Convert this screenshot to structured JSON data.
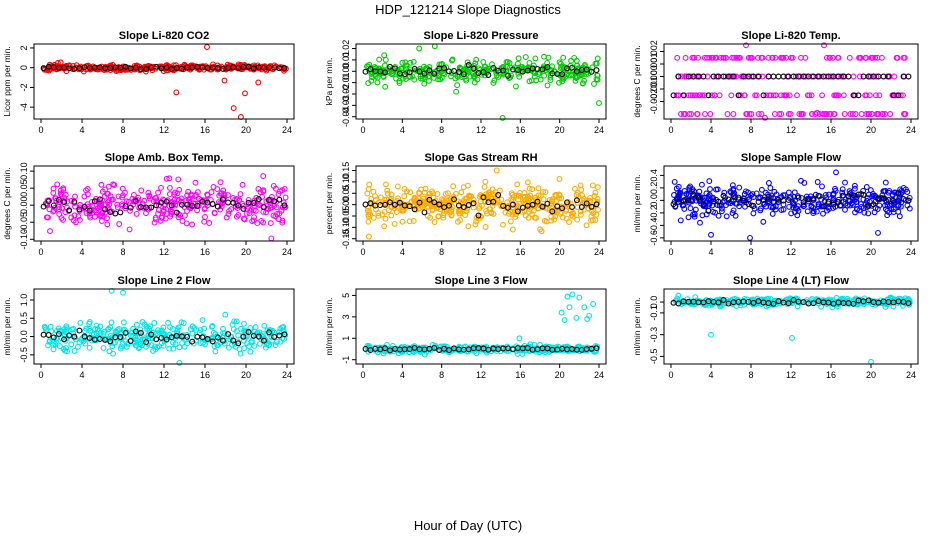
{
  "figure": {
    "title": "HDP_121214  Slope Diagnostics",
    "xlabel": "Hour of Day (UTC)"
  },
  "chart_data": [
    {
      "type": "scatter",
      "title": "Slope Li-820 CO2",
      "ylabel": "Licor ppm per min.",
      "color": "#ff0000",
      "xlim": [
        0,
        24
      ],
      "ylim": [
        -5.2,
        2.4
      ],
      "xticks": [
        0,
        4,
        8,
        12,
        16,
        20,
        24
      ],
      "yticks": [
        -4,
        -2,
        0,
        2
      ],
      "ytick_labels": [
        "-4",
        "-2",
        "0",
        "2"
      ],
      "spread": 0.28,
      "outliers": [
        [
          16.2,
          2.1
        ],
        [
          19.5,
          -5.0
        ],
        [
          18.8,
          -4.1
        ],
        [
          13.2,
          -2.5
        ],
        [
          19.9,
          -2.6
        ],
        [
          21.2,
          -1.5
        ],
        [
          17.9,
          -1.3
        ]
      ],
      "seed": 11,
      "n_colored": 320,
      "n_black": 48
    },
    {
      "type": "scatter",
      "title": "Slope Li-820 Pressure",
      "ylabel": "kPa per min.",
      "color": "#00cc00",
      "xlim": [
        0,
        24
      ],
      "ylim": [
        -0.042,
        0.024
      ],
      "xticks": [
        0,
        4,
        8,
        12,
        16,
        20,
        24
      ],
      "yticks": [
        -0.04,
        -0.03,
        -0.02,
        -0.01,
        0.0,
        0.01,
        0.02
      ],
      "ytick_labels": [
        "-0.04",
        "-0.03",
        "-0.02",
        "-0.01",
        "0.00",
        "0.01",
        "0.02"
      ],
      "spread": 0.009,
      "outliers": [
        [
          14.2,
          -0.041
        ],
        [
          24.0,
          -0.028
        ],
        [
          5.7,
          0.02
        ],
        [
          7.3,
          0.022
        ]
      ],
      "seed": 23,
      "n_colored": 330,
      "n_black": 48
    },
    {
      "type": "scatter",
      "title": "Slope Li-820 Temp.",
      "ylabel": "degrees C per min.",
      "color": "#ff00ff",
      "xlim": [
        0,
        24
      ],
      "ylim": [
        -0.0034,
        0.0026
      ],
      "xticks": [
        0,
        4,
        8,
        12,
        16,
        20,
        24
      ],
      "yticks": [
        -0.002,
        -0.001,
        0.0,
        0.001,
        0.002
      ],
      "ytick_labels": [
        "-0.002",
        "-0.001",
        "0.000",
        "0.001",
        "0.002"
      ],
      "spread": 0.0,
      "quantized": [
        -0.003,
        -0.0015,
        0.0,
        0.0015
      ],
      "black_levels": [
        0.0
      ],
      "outliers": [
        [
          7.5,
          0.0025
        ],
        [
          15.3,
          0.0025
        ],
        [
          9.4,
          -0.0033
        ],
        [
          14.6,
          -0.0029
        ]
      ],
      "seed": 37,
      "n_colored": 260,
      "n_black": 120
    },
    {
      "type": "scatter",
      "title": "Slope Amb. Box Temp.",
      "ylabel": "degrees C per min.",
      "color": "#ff00ff",
      "xlim": [
        0,
        24
      ],
      "ylim": [
        -0.105,
        0.115
      ],
      "xticks": [
        0,
        4,
        8,
        12,
        16,
        20,
        24
      ],
      "yticks": [
        -0.1,
        -0.05,
        0.0,
        0.05,
        0.1
      ],
      "ytick_labels": [
        "-0.10",
        "-0.05",
        "0.00",
        "0.05",
        "0.10"
      ],
      "spread": 0.055,
      "outliers": [],
      "seed": 41,
      "n_colored": 360,
      "n_black": 48
    },
    {
      "type": "scatter",
      "title": "Slope Gas Stream RH",
      "ylabel": "percent per min.",
      "color": "#ffaa00",
      "xlim": [
        0,
        24
      ],
      "ylim": [
        -0.16,
        0.17
      ],
      "xticks": [
        0,
        4,
        8,
        12,
        16,
        20,
        24
      ],
      "yticks": [
        -0.15,
        -0.1,
        -0.05,
        0.0,
        0.05,
        0.1,
        0.15
      ],
      "ytick_labels": [
        "-0.15",
        "-0.10",
        "-0.05",
        "0.00",
        "0.05",
        "0.10",
        "0.15"
      ],
      "spread": 0.075,
      "outliers": [
        [
          0.6,
          -0.14
        ],
        [
          13.6,
          0.15
        ]
      ],
      "seed": 53,
      "n_colored": 420,
      "n_black": 48
    },
    {
      "type": "scatter",
      "title": "Slope Sample Flow",
      "ylabel": "ml/min per min.",
      "color": "#0000ff",
      "xlim": [
        0,
        24
      ],
      "ylim": [
        -0.65,
        0.55
      ],
      "xticks": [
        0,
        4,
        8,
        12,
        16,
        20,
        24
      ],
      "yticks": [
        -0.6,
        -0.4,
        -0.2,
        0.0,
        0.2,
        0.4
      ],
      "ytick_labels": [
        "-0.6",
        "-0.4",
        "-0.2",
        "0.0",
        "0.2",
        "0.4"
      ],
      "spread": 0.2,
      "outliers": [
        [
          7.9,
          -0.6
        ],
        [
          16.5,
          0.45
        ],
        [
          4.0,
          -0.55
        ],
        [
          20.7,
          -0.52
        ]
      ],
      "seed": 67,
      "n_colored": 380,
      "n_black": 48
    },
    {
      "type": "scatter",
      "title": "Slope Line 2 Flow",
      "ylabel": "ml/min per min.",
      "color": "#00e5e5",
      "xlim": [
        0,
        24
      ],
      "ylim": [
        -0.75,
        1.3
      ],
      "xticks": [
        0,
        4,
        8,
        12,
        16,
        20,
        24
      ],
      "yticks": [
        -0.5,
        0.0,
        0.5,
        1.0
      ],
      "ytick_labels": [
        "-0.5",
        "0.0",
        "0.5",
        "1.0"
      ],
      "spread": 0.35,
      "outliers": [
        [
          6.9,
          1.25
        ],
        [
          8.0,
          1.2
        ],
        [
          13.5,
          -0.72
        ]
      ],
      "seed": 79,
      "n_colored": 330,
      "n_black": 48
    },
    {
      "type": "scatter",
      "title": "Slope Line 3 Flow",
      "ylabel": "ml/min per min.",
      "color": "#00e5e5",
      "xlim": [
        0,
        24
      ],
      "ylim": [
        -1.4,
        5.6
      ],
      "xticks": [
        0,
        4,
        8,
        12,
        16,
        20,
        24
      ],
      "yticks": [
        -1,
        1,
        3,
        5
      ],
      "ytick_labels": [
        "-1",
        "1",
        "3",
        "5"
      ],
      "spread": 0.28,
      "outliers": [
        [
          20.2,
          3.4
        ],
        [
          20.8,
          4.9
        ],
        [
          21.3,
          5.1
        ],
        [
          22.0,
          4.8
        ],
        [
          22.5,
          3.9
        ],
        [
          23.0,
          3.1
        ],
        [
          21.7,
          2.9
        ],
        [
          20.5,
          2.7
        ],
        [
          23.4,
          4.2
        ],
        [
          21.0,
          3.9
        ],
        [
          22.8,
          2.8
        ],
        [
          15.9,
          1.0
        ]
      ],
      "seed": 83,
      "n_colored": 320,
      "n_black": 48
    },
    {
      "type": "scatter",
      "title": "Slope Line 4 (LT) Flow",
      "ylabel": "ml/min per min.",
      "color": "#00e5e5",
      "xlim": [
        0,
        24
      ],
      "ylim": [
        -0.57,
        0.12
      ],
      "xticks": [
        0,
        4,
        8,
        12,
        16,
        20,
        24
      ],
      "yticks": [
        -0.5,
        -0.3,
        -0.1,
        0.0
      ],
      "ytick_labels": [
        "-0.5",
        "-0.3",
        "-0.1",
        "0.0"
      ],
      "spread": 0.035,
      "outliers": [
        [
          4.0,
          -0.3
        ],
        [
          12.1,
          -0.33
        ],
        [
          20.0,
          -0.55
        ]
      ],
      "seed": 97,
      "n_colored": 330,
      "n_black": 48
    }
  ]
}
